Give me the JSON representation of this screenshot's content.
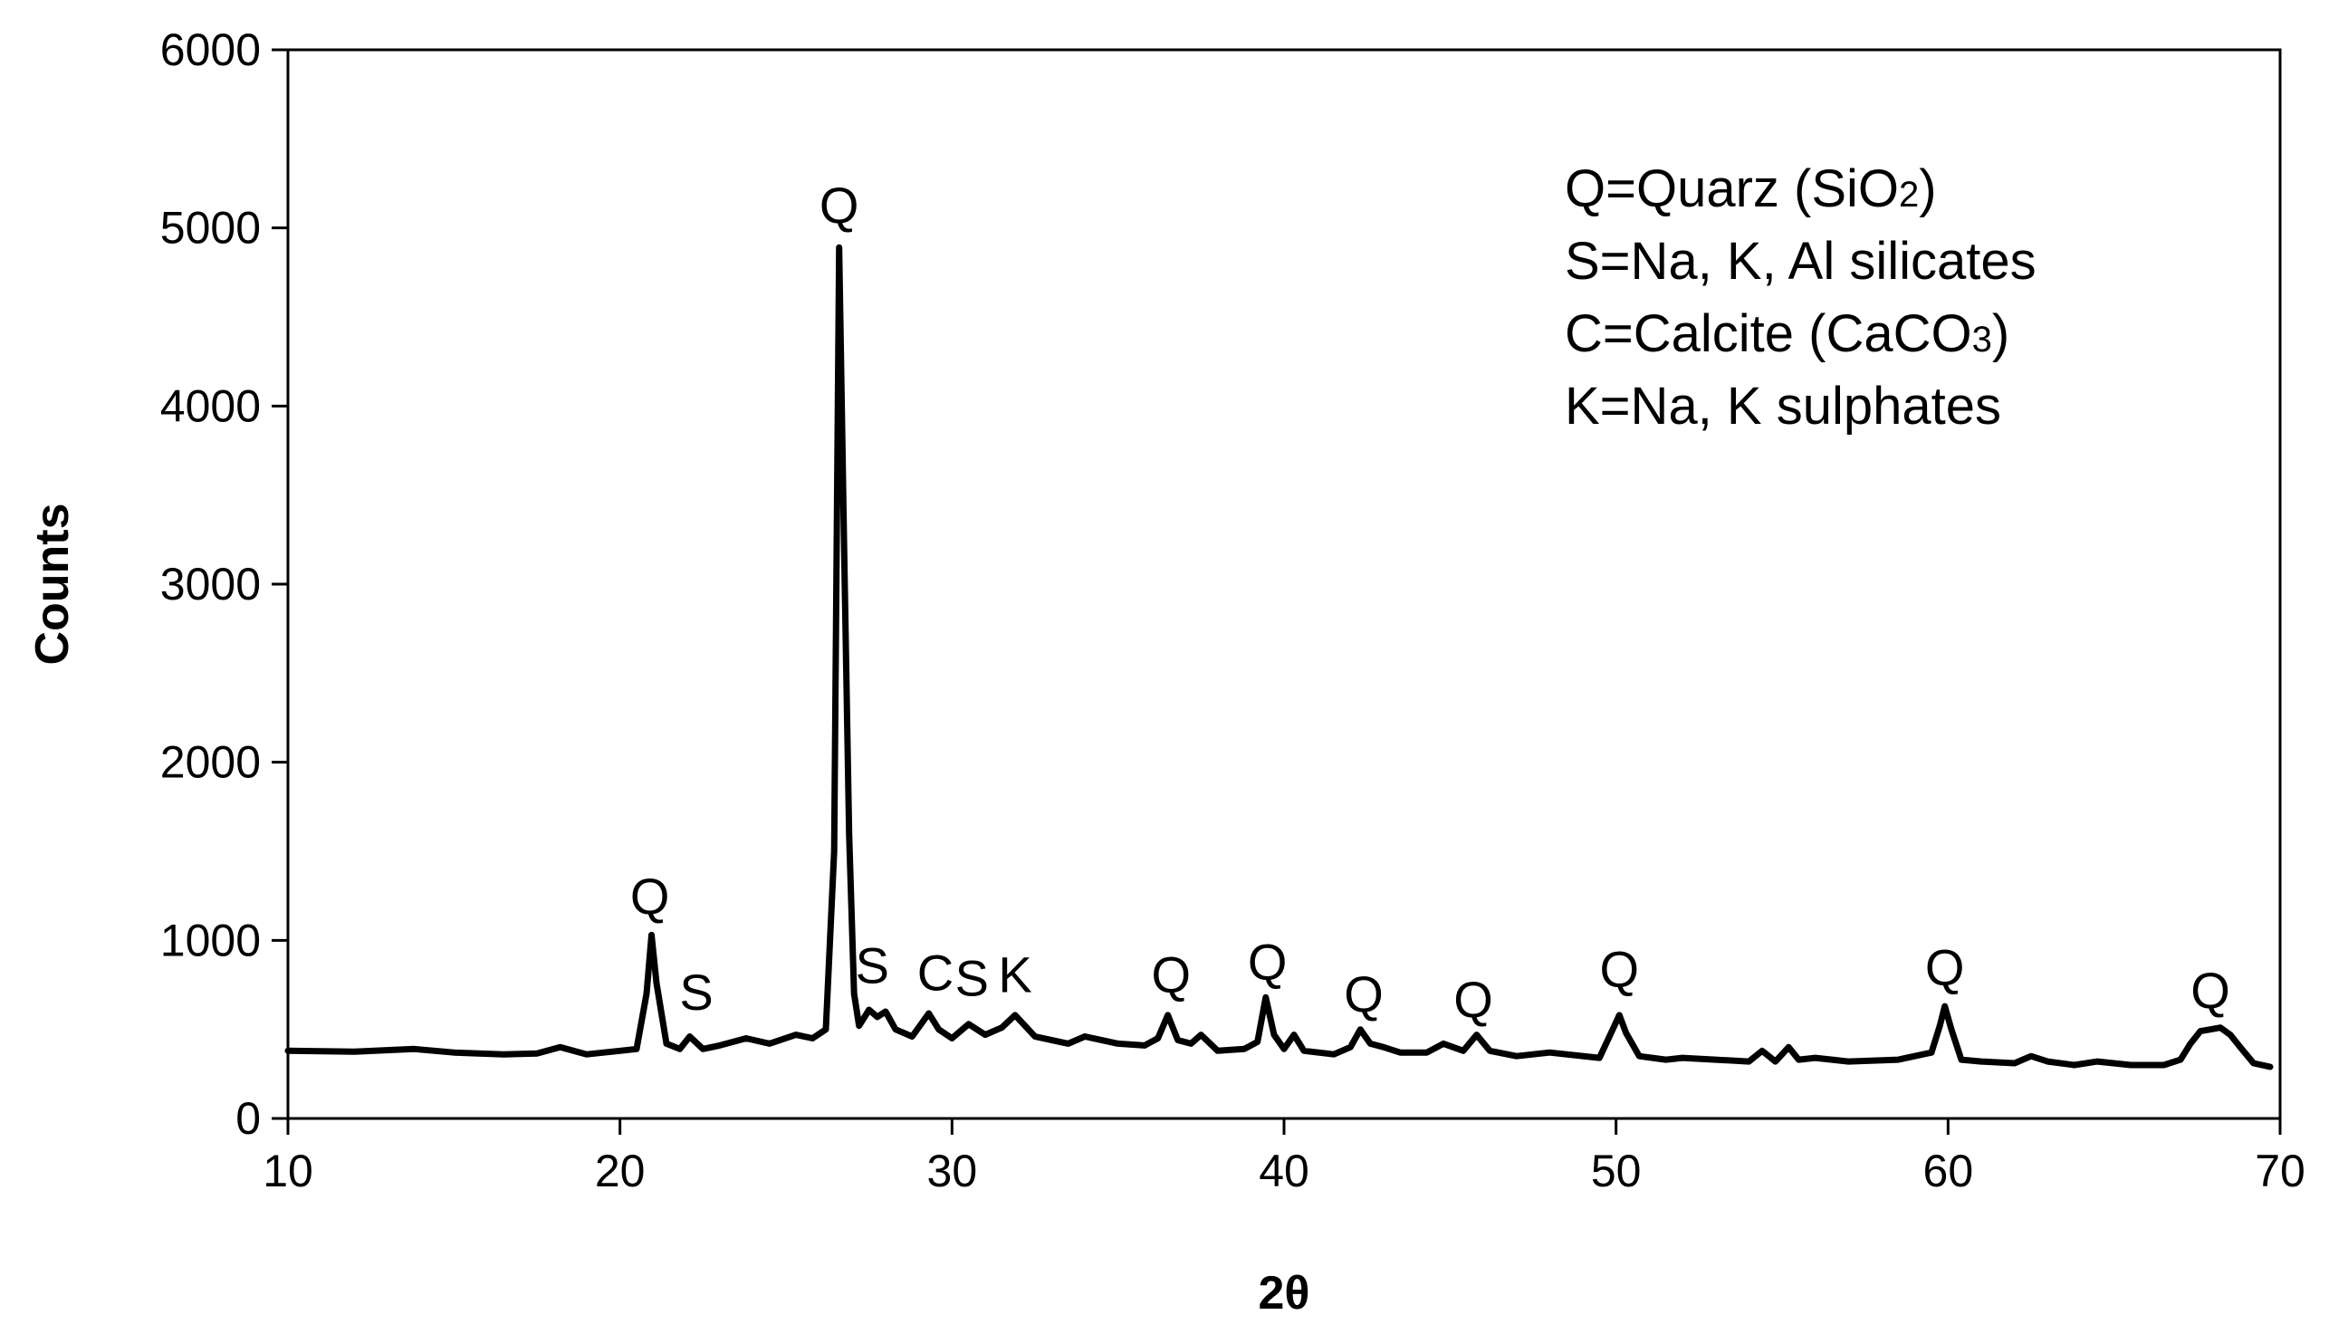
{
  "chart_data": {
    "type": "line",
    "xlabel": "2θ",
    "ylabel": "Counts",
    "xlim": [
      10,
      70
    ],
    "ylim": [
      0,
      6000
    ],
    "x_ticks": [
      "10",
      "20",
      "30",
      "40",
      "50",
      "60",
      "70"
    ],
    "y_ticks": [
      "0",
      "1000",
      "2000",
      "3000",
      "4000",
      "5000",
      "6000"
    ],
    "grid": false,
    "legend_position": "top-right",
    "legend": [
      {
        "text": "Q=Quarz (SiO",
        "sub": "2",
        "tail": ")"
      },
      {
        "text": "S=Na, K, Al silicates",
        "sub": "",
        "tail": ""
      },
      {
        "text": "C=Calcite (CaCO",
        "sub": "3",
        "tail": ")"
      },
      {
        "text": "K=Na, K sulphates",
        "sub": "",
        "tail": ""
      }
    ],
    "annotations": [
      {
        "label": "Q",
        "x": 20.9,
        "y": 1150
      },
      {
        "label": "S",
        "x": 22.3,
        "y": 610
      },
      {
        "label": "Q",
        "x": 26.6,
        "y": 5030
      },
      {
        "label": "S",
        "x": 27.6,
        "y": 760
      },
      {
        "label": "C",
        "x": 29.5,
        "y": 720
      },
      {
        "label": "S",
        "x": 30.6,
        "y": 690
      },
      {
        "label": "K",
        "x": 31.9,
        "y": 710
      },
      {
        "label": "Q",
        "x": 36.6,
        "y": 710
      },
      {
        "label": "Q",
        "x": 39.5,
        "y": 780
      },
      {
        "label": "Q",
        "x": 42.4,
        "y": 600
      },
      {
        "label": "Q",
        "x": 45.7,
        "y": 570
      },
      {
        "label": "Q",
        "x": 50.1,
        "y": 740
      },
      {
        "label": "Q",
        "x": 59.9,
        "y": 750
      },
      {
        "label": "Q",
        "x": 67.9,
        "y": 620
      }
    ],
    "series": [
      {
        "color": "#000000",
        "x": [
          10,
          12,
          13.8,
          15,
          16.5,
          17.5,
          18.2,
          19,
          20,
          20.5,
          20.8,
          20.95,
          21.1,
          21.4,
          21.8,
          22.1,
          22.5,
          23,
          23.8,
          24.5,
          25.3,
          25.8,
          26.2,
          26.45,
          26.6,
          26.75,
          26.9,
          27.05,
          27.2,
          27.5,
          27.75,
          28,
          28.3,
          28.8,
          29.3,
          29.6,
          30,
          30.5,
          31,
          31.5,
          31.9,
          32.5,
          33.5,
          34,
          35,
          35.8,
          36.2,
          36.5,
          36.8,
          37.2,
          37.5,
          38,
          38.8,
          39.2,
          39.45,
          39.7,
          40,
          40.3,
          40.6,
          41.5,
          42,
          42.3,
          42.6,
          43,
          43.5,
          44.3,
          44.8,
          45.4,
          45.8,
          46.2,
          47,
          48,
          49.5,
          49.9,
          50.1,
          50.3,
          50.7,
          51.5,
          52,
          53,
          54,
          54.4,
          54.8,
          55.2,
          55.5,
          56,
          57,
          58.5,
          59.5,
          59.75,
          59.9,
          60.1,
          60.4,
          61,
          62,
          62.5,
          63,
          63.8,
          64.5,
          65.5,
          66.5,
          67,
          67.3,
          67.6,
          67.9,
          68.2,
          68.5,
          68.8,
          69.2,
          69.7
        ],
        "y": [
          380,
          375,
          390,
          370,
          360,
          365,
          400,
          360,
          380,
          390,
          700,
          1030,
          760,
          420,
          390,
          460,
          390,
          410,
          450,
          420,
          470,
          450,
          500,
          1500,
          4890,
          3200,
          1600,
          700,
          520,
          610,
          570,
          600,
          500,
          460,
          590,
          500,
          450,
          530,
          470,
          510,
          580,
          460,
          420,
          460,
          420,
          410,
          450,
          580,
          440,
          420,
          470,
          380,
          390,
          430,
          680,
          470,
          390,
          470,
          380,
          360,
          400,
          500,
          420,
          400,
          370,
          370,
          420,
          380,
          470,
          380,
          350,
          370,
          340,
          500,
          580,
          480,
          350,
          330,
          340,
          330,
          320,
          380,
          320,
          400,
          330,
          340,
          320,
          330,
          370,
          520,
          630,
          500,
          330,
          320,
          310,
          350,
          320,
          300,
          320,
          300,
          300,
          330,
          420,
          490,
          500,
          510,
          470,
          400,
          310,
          290
        ]
      }
    ]
  }
}
